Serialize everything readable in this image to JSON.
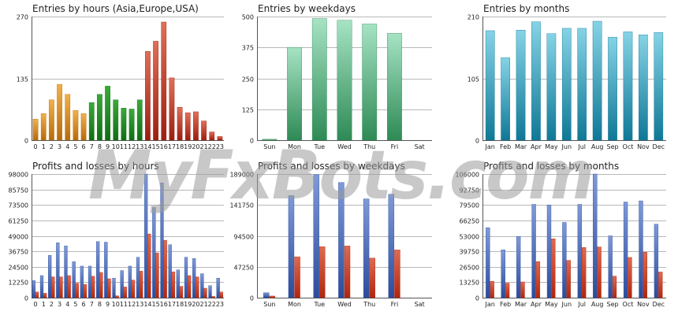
{
  "watermark": "MyFxBots.com",
  "colors": {
    "orange": [
      "#f0b14a",
      "#b86a08"
    ],
    "green": [
      "#3aaa3a",
      "#0f6e12"
    ],
    "red": [
      "#e07058",
      "#9c1e10"
    ],
    "mint": [
      "#a6e3c4",
      "#2e8a55"
    ],
    "cyan": [
      "#86d3e6",
      "#0f7896"
    ],
    "blue": [
      "#7f9ad8",
      "#2b4c9c"
    ],
    "loss": [
      "#e06a50",
      "#b0260e"
    ]
  },
  "chart_data": [
    {
      "id": "hours",
      "type": "bar",
      "title": "Entries by hours (Asia,Europe,USA)",
      "categories": [
        "0",
        "1",
        "2",
        "3",
        "4",
        "5",
        "6",
        "7",
        "8",
        "9",
        "10",
        "11",
        "12",
        "13",
        "14",
        "15",
        "16",
        "17",
        "18",
        "19",
        "20",
        "21",
        "22",
        "23"
      ],
      "ylim": [
        0,
        270
      ],
      "yticks": [
        "0",
        "135",
        "270"
      ],
      "yticks_values": [
        0,
        135,
        270
      ],
      "segments": [
        {
          "from": 0,
          "to": 6,
          "color": "orange"
        },
        {
          "from": 7,
          "to": 13,
          "color": "green"
        },
        {
          "from": 14,
          "to": 23,
          "color": "red"
        }
      ],
      "values": [
        46,
        58,
        88,
        122,
        100,
        65,
        58,
        82,
        100,
        118,
        88,
        70,
        68,
        88,
        194,
        216,
        258,
        136,
        72,
        60,
        62,
        42,
        18,
        8
      ]
    },
    {
      "id": "weekdays",
      "type": "bar",
      "title": "Entries by weekdays",
      "categories": [
        "Sun",
        "Mon",
        "Tue",
        "Wed",
        "Thu",
        "Fri",
        "Sat"
      ],
      "ylim": [
        0,
        500
      ],
      "yticks": [
        "0",
        "125",
        "250",
        "375",
        "500"
      ],
      "yticks_values": [
        0,
        125,
        250,
        375,
        500
      ],
      "color": "mint",
      "values": [
        4,
        375,
        492,
        485,
        470,
        432,
        0
      ]
    },
    {
      "id": "months",
      "type": "bar",
      "title": "Entries by months",
      "categories": [
        "Jan",
        "Feb",
        "Mar",
        "Apr",
        "May",
        "Jun",
        "Jul",
        "Aug",
        "Sep",
        "Oct",
        "Nov",
        "Dec"
      ],
      "ylim": [
        0,
        210
      ],
      "yticks": [
        "0",
        "105",
        "210"
      ],
      "yticks_values": [
        0,
        105,
        210
      ],
      "color": "cyan",
      "values": [
        186,
        140,
        187,
        201,
        181,
        190,
        190,
        202,
        175,
        184,
        179,
        183
      ]
    },
    {
      "id": "pl-hours",
      "type": "bar",
      "title": "Profits and losses by hours",
      "categories": [
        "0",
        "1",
        "2",
        "3",
        "4",
        "5",
        "6",
        "7",
        "8",
        "9",
        "10",
        "11",
        "12",
        "13",
        "14",
        "15",
        "16",
        "17",
        "18",
        "19",
        "20",
        "21",
        "22",
        "23"
      ],
      "ylim": [
        0,
        98000
      ],
      "yticks": [
        "0",
        "12250",
        "24500",
        "36750",
        "49000",
        "61250",
        "73500",
        "85750",
        "98000"
      ],
      "yticks_values": [
        0,
        12250,
        24500,
        36750,
        49000,
        61250,
        73500,
        85750,
        98000
      ],
      "series": [
        {
          "color": "blue",
          "values": [
            13500,
            17500,
            33500,
            43500,
            41000,
            28500,
            25000,
            25000,
            44500,
            44000,
            15500,
            21500,
            25000,
            32000,
            98000,
            71500,
            91000,
            42000,
            22000,
            32000,
            31000,
            19000,
            9500,
            15500
          ]
        },
        {
          "color": "loss",
          "values": [
            4500,
            3500,
            16500,
            16500,
            17500,
            11500,
            10500,
            17000,
            20000,
            15000,
            1500,
            8500,
            14000,
            21000,
            50500,
            35500,
            45500,
            20500,
            9000,
            17500,
            16500,
            7500,
            1000,
            4500
          ]
        }
      ]
    },
    {
      "id": "pl-weekdays",
      "type": "bar",
      "title": "Profits and losses by weekdays",
      "categories": [
        "Sun",
        "Mon",
        "Tue",
        "Wed",
        "Thu",
        "Fri",
        "Sat"
      ],
      "ylim": [
        0,
        189000
      ],
      "yticks": [
        "0",
        "47250",
        "94500",
        "141750",
        "189000"
      ],
      "yticks_values": [
        0,
        47250,
        94500,
        141750,
        189000
      ],
      "series": [
        {
          "color": "blue",
          "values": [
            7500,
            156000,
            188000,
            176000,
            151000,
            158000,
            0
          ]
        },
        {
          "color": "loss",
          "values": [
            2500,
            62500,
            78000,
            79000,
            60500,
            73000,
            0
          ]
        }
      ]
    },
    {
      "id": "pl-months",
      "type": "bar",
      "title": "Profits and losses by months",
      "categories": [
        "Jan",
        "Feb",
        "Mar",
        "Apr",
        "May",
        "Jun",
        "Jul",
        "Aug",
        "Sep",
        "Oct",
        "Nov",
        "Dec"
      ],
      "ylim": [
        0,
        106000
      ],
      "yticks": [
        "0",
        "13250",
        "26500",
        "39750",
        "53000",
        "66250",
        "79500",
        "92750",
        "106000"
      ],
      "yticks_values": [
        0,
        13250,
        26500,
        39750,
        53000,
        66250,
        79500,
        92750,
        106000
      ],
      "series": [
        {
          "color": "blue",
          "values": [
            60000,
            41000,
            52500,
            80000,
            79500,
            64500,
            80000,
            106000,
            53000,
            82000,
            83000,
            63000
          ]
        },
        {
          "color": "loss",
          "values": [
            14000,
            12500,
            13500,
            31000,
            50500,
            32000,
            43000,
            43500,
            18500,
            34500,
            39000,
            22000
          ]
        }
      ]
    }
  ]
}
